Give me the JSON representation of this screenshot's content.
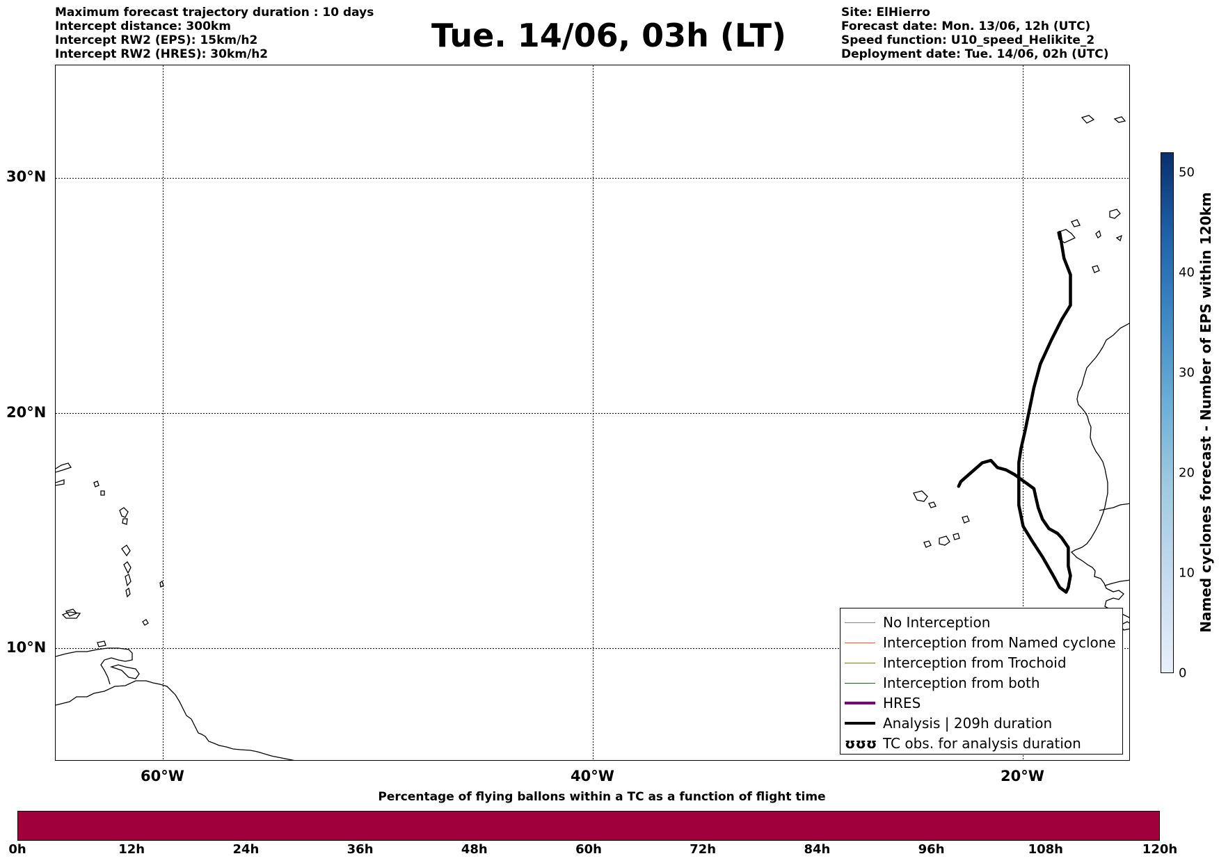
{
  "header_left": [
    "Maximum forecast trajectory duration : 10 days",
    "Intercept distance: 300km",
    "Intercept RW2 (EPS):  15km/h2",
    "Intercept RW2 (HRES): 30km/h2"
  ],
  "title": "Tue. 14/06, 03h (LT)",
  "header_right": [
    "Site: ElHierro",
    "Forecast date: Mon. 13/06, 12h (UTC)",
    "Speed function: U10_speed_Helikite_2",
    "Deployment date: Tue. 14/06, 02h (UTC)"
  ],
  "map": {
    "lat_labels": [
      "30°N",
      "20°N",
      "10°N"
    ],
    "lon_labels": [
      "60°W",
      "40°W",
      "20°W"
    ],
    "lat_values": [
      30,
      20,
      10
    ],
    "lon_values": [
      -60,
      -40,
      -20
    ],
    "lon_range": [
      -65,
      -15
    ],
    "lat_range": [
      5.2,
      34.8
    ],
    "gridlines": "dotted",
    "analysis_track": {
      "color": "#000000",
      "points": [
        [
          -18.3,
          27.7
        ],
        [
          -18.1,
          26.6
        ],
        [
          -17.8,
          25.9
        ],
        [
          -17.8,
          24.6
        ],
        [
          -18.2,
          24.0
        ],
        [
          -18.7,
          23.1
        ],
        [
          -19.2,
          22.1
        ],
        [
          -19.5,
          21.1
        ],
        [
          -19.7,
          20.2
        ],
        [
          -19.9,
          19.3
        ],
        [
          -20.1,
          18.5
        ],
        [
          -20.2,
          17.9
        ],
        [
          -20.2,
          16.9
        ],
        [
          -20.2,
          16.1
        ],
        [
          -20.0,
          15.2
        ],
        [
          -19.6,
          14.6
        ],
        [
          -19.1,
          13.9
        ],
        [
          -18.6,
          13.1
        ],
        [
          -18.3,
          12.6
        ],
        [
          -18.0,
          12.4
        ],
        [
          -17.9,
          12.6
        ],
        [
          -17.8,
          13.1
        ],
        [
          -17.9,
          13.5
        ],
        [
          -17.9,
          14.3
        ],
        [
          -18.2,
          14.7
        ],
        [
          -18.4,
          14.9
        ],
        [
          -18.8,
          15.1
        ],
        [
          -19.1,
          15.5
        ],
        [
          -19.3,
          16.0
        ],
        [
          -19.4,
          16.4
        ],
        [
          -19.5,
          16.8
        ],
        [
          -20.1,
          17.2
        ],
        [
          -20.4,
          17.4
        ],
        [
          -20.8,
          17.6
        ],
        [
          -21.2,
          17.7
        ],
        [
          -21.5,
          18.0
        ],
        [
          -21.9,
          17.9
        ],
        [
          -22.4,
          17.5
        ],
        [
          -22.9,
          17.1
        ],
        [
          -23.0,
          16.9
        ]
      ]
    }
  },
  "legend": [
    {
      "label": "No Interception",
      "color": "#808080",
      "style": "thin"
    },
    {
      "label": "Interception from Named cyclone",
      "color": "#ff5a14",
      "style": "thin"
    },
    {
      "label": "Interception from Trochoid",
      "color": "#808000",
      "style": "thin"
    },
    {
      "label": "Interception from both",
      "color": "#008000",
      "style": "thin"
    },
    {
      "label": "HRES",
      "color": "#800080",
      "style": "thick"
    },
    {
      "label": "Analysis | 209h duration",
      "color": "#000000",
      "style": "thick"
    },
    {
      "label": "TC obs. for analysis duration",
      "color": "#000000",
      "style": "symbol",
      "symbol": "ʊʊʊ"
    }
  ],
  "colorbar": {
    "label": "Named cyclones forecast - Number of EPS within 120km",
    "ticks": [
      0,
      10,
      20,
      30,
      40,
      50
    ],
    "range": [
      0,
      52
    ]
  },
  "bottom": {
    "title": "Percentage of flying ballons within a TC as a function of flight time",
    "ticks": [
      "0h",
      "12h",
      "24h",
      "36h",
      "48h",
      "60h",
      "72h",
      "84h",
      "96h",
      "108h",
      "120h"
    ],
    "fill_color": "#a0003c",
    "fill_fraction": 1.0
  }
}
